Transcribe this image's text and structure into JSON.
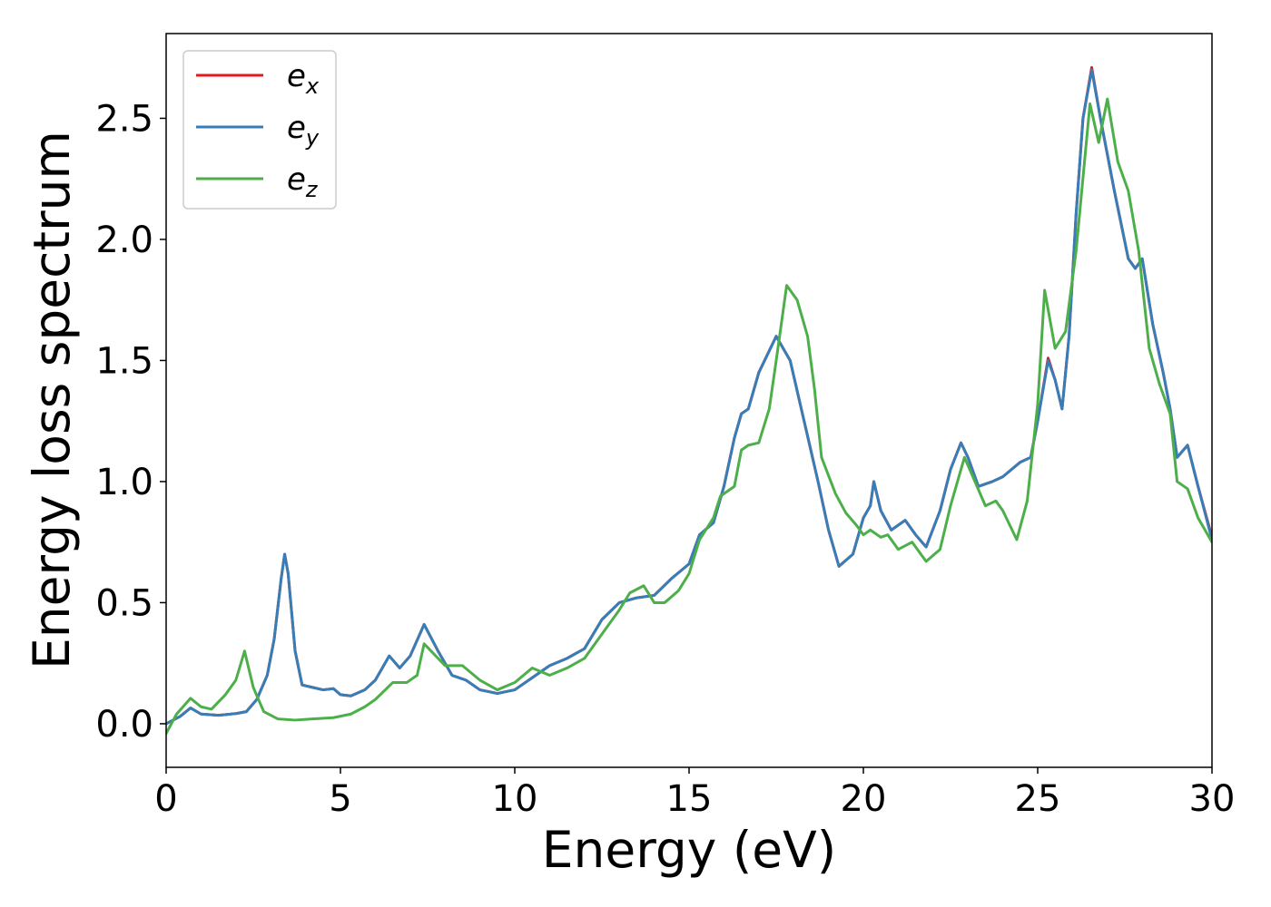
{
  "chart_data": {
    "type": "line",
    "title": "",
    "xlabel": "Energy (eV)",
    "ylabel": "Energy loss spectrum",
    "xlim": [
      0,
      30
    ],
    "ylim": [
      -0.18,
      2.85
    ],
    "xticks": [
      0,
      5,
      10,
      15,
      20,
      25,
      30
    ],
    "xtick_labels": [
      "0",
      "5",
      "10",
      "15",
      "20",
      "25",
      "30"
    ],
    "yticks": [
      0.0,
      0.5,
      1.0,
      1.5,
      2.0,
      2.5
    ],
    "ytick_labels": [
      "0.0",
      "0.5",
      "1.0",
      "1.5",
      "2.0",
      "2.5"
    ],
    "grid": false,
    "legend_position": "top-left",
    "series": [
      {
        "name": "e_x",
        "label_base": "e",
        "label_sub": "x",
        "color": "#e41a1c",
        "points": [
          [
            0,
            0.0
          ],
          [
            0.4,
            0.03
          ],
          [
            0.7,
            0.065
          ],
          [
            1.0,
            0.04
          ],
          [
            1.5,
            0.035
          ],
          [
            2.0,
            0.042
          ],
          [
            2.3,
            0.05
          ],
          [
            2.6,
            0.1
          ],
          [
            2.9,
            0.2
          ],
          [
            3.1,
            0.35
          ],
          [
            3.3,
            0.6
          ],
          [
            3.4,
            0.7
          ],
          [
            3.5,
            0.62
          ],
          [
            3.7,
            0.3
          ],
          [
            3.9,
            0.16
          ],
          [
            4.2,
            0.15
          ],
          [
            4.5,
            0.14
          ],
          [
            4.8,
            0.145
          ],
          [
            5.0,
            0.12
          ],
          [
            5.3,
            0.115
          ],
          [
            5.7,
            0.14
          ],
          [
            6.0,
            0.18
          ],
          [
            6.4,
            0.28
          ],
          [
            6.7,
            0.23
          ],
          [
            7.0,
            0.28
          ],
          [
            7.4,
            0.41
          ],
          [
            7.8,
            0.3
          ],
          [
            8.2,
            0.2
          ],
          [
            8.6,
            0.18
          ],
          [
            9.0,
            0.14
          ],
          [
            9.5,
            0.125
          ],
          [
            10.0,
            0.14
          ],
          [
            10.5,
            0.19
          ],
          [
            11.0,
            0.24
          ],
          [
            11.5,
            0.27
          ],
          [
            12.0,
            0.31
          ],
          [
            12.5,
            0.43
          ],
          [
            13.0,
            0.5
          ],
          [
            13.5,
            0.52
          ],
          [
            14.0,
            0.53
          ],
          [
            14.5,
            0.6
          ],
          [
            15.0,
            0.66
          ],
          [
            15.3,
            0.78
          ],
          [
            15.7,
            0.83
          ],
          [
            16.0,
            0.98
          ],
          [
            16.3,
            1.18
          ],
          [
            16.5,
            1.28
          ],
          [
            16.7,
            1.3
          ],
          [
            17.0,
            1.45
          ],
          [
            17.5,
            1.6
          ],
          [
            17.9,
            1.5
          ],
          [
            18.3,
            1.25
          ],
          [
            18.7,
            1.0
          ],
          [
            19.0,
            0.8
          ],
          [
            19.3,
            0.65
          ],
          [
            19.7,
            0.7
          ],
          [
            20.0,
            0.85
          ],
          [
            20.2,
            0.9
          ],
          [
            20.3,
            1.0
          ],
          [
            20.5,
            0.88
          ],
          [
            20.8,
            0.8
          ],
          [
            21.2,
            0.84
          ],
          [
            21.5,
            0.78
          ],
          [
            21.8,
            0.73
          ],
          [
            22.2,
            0.88
          ],
          [
            22.5,
            1.05
          ],
          [
            22.8,
            1.16
          ],
          [
            23.0,
            1.1
          ],
          [
            23.3,
            0.98
          ],
          [
            23.7,
            1.0
          ],
          [
            24.0,
            1.02
          ],
          [
            24.5,
            1.08
          ],
          [
            24.8,
            1.1
          ],
          [
            25.0,
            1.25
          ],
          [
            25.3,
            1.51
          ],
          [
            25.5,
            1.42
          ],
          [
            25.7,
            1.3
          ],
          [
            25.9,
            1.6
          ],
          [
            26.1,
            2.1
          ],
          [
            26.3,
            2.5
          ],
          [
            26.55,
            2.71
          ],
          [
            26.8,
            2.5
          ],
          [
            27.2,
            2.2
          ],
          [
            27.6,
            1.92
          ],
          [
            27.8,
            1.88
          ],
          [
            28.0,
            1.92
          ],
          [
            28.3,
            1.65
          ],
          [
            28.6,
            1.45
          ],
          [
            28.8,
            1.3
          ],
          [
            29.0,
            1.1
          ],
          [
            29.3,
            1.15
          ],
          [
            29.6,
            0.98
          ],
          [
            30.0,
            0.77
          ]
        ]
      },
      {
        "name": "e_y",
        "label_base": "e",
        "label_sub": "y",
        "color": "#377eb8",
        "points": [
          [
            0,
            0.0
          ],
          [
            0.4,
            0.03
          ],
          [
            0.7,
            0.065
          ],
          [
            1.0,
            0.04
          ],
          [
            1.5,
            0.035
          ],
          [
            2.0,
            0.042
          ],
          [
            2.3,
            0.05
          ],
          [
            2.6,
            0.1
          ],
          [
            2.9,
            0.2
          ],
          [
            3.1,
            0.35
          ],
          [
            3.3,
            0.6
          ],
          [
            3.4,
            0.7
          ],
          [
            3.5,
            0.62
          ],
          [
            3.7,
            0.3
          ],
          [
            3.9,
            0.16
          ],
          [
            4.2,
            0.15
          ],
          [
            4.5,
            0.14
          ],
          [
            4.8,
            0.145
          ],
          [
            5.0,
            0.12
          ],
          [
            5.3,
            0.115
          ],
          [
            5.7,
            0.14
          ],
          [
            6.0,
            0.18
          ],
          [
            6.4,
            0.28
          ],
          [
            6.7,
            0.23
          ],
          [
            7.0,
            0.28
          ],
          [
            7.4,
            0.41
          ],
          [
            7.8,
            0.3
          ],
          [
            8.2,
            0.2
          ],
          [
            8.6,
            0.18
          ],
          [
            9.0,
            0.14
          ],
          [
            9.5,
            0.125
          ],
          [
            10.0,
            0.14
          ],
          [
            10.5,
            0.19
          ],
          [
            11.0,
            0.24
          ],
          [
            11.5,
            0.27
          ],
          [
            12.0,
            0.31
          ],
          [
            12.5,
            0.43
          ],
          [
            13.0,
            0.5
          ],
          [
            13.5,
            0.52
          ],
          [
            14.0,
            0.53
          ],
          [
            14.5,
            0.6
          ],
          [
            15.0,
            0.66
          ],
          [
            15.3,
            0.78
          ],
          [
            15.7,
            0.83
          ],
          [
            16.0,
            0.98
          ],
          [
            16.3,
            1.18
          ],
          [
            16.5,
            1.28
          ],
          [
            16.7,
            1.3
          ],
          [
            17.0,
            1.45
          ],
          [
            17.5,
            1.6
          ],
          [
            17.9,
            1.5
          ],
          [
            18.3,
            1.25
          ],
          [
            18.7,
            1.0
          ],
          [
            19.0,
            0.8
          ],
          [
            19.3,
            0.65
          ],
          [
            19.7,
            0.7
          ],
          [
            20.0,
            0.85
          ],
          [
            20.2,
            0.9
          ],
          [
            20.3,
            1.0
          ],
          [
            20.5,
            0.88
          ],
          [
            20.8,
            0.8
          ],
          [
            21.2,
            0.84
          ],
          [
            21.5,
            0.78
          ],
          [
            21.8,
            0.73
          ],
          [
            22.2,
            0.88
          ],
          [
            22.5,
            1.05
          ],
          [
            22.8,
            1.16
          ],
          [
            23.0,
            1.1
          ],
          [
            23.3,
            0.98
          ],
          [
            23.7,
            1.0
          ],
          [
            24.0,
            1.02
          ],
          [
            24.5,
            1.08
          ],
          [
            24.8,
            1.1
          ],
          [
            25.0,
            1.25
          ],
          [
            25.3,
            1.5
          ],
          [
            25.5,
            1.42
          ],
          [
            25.7,
            1.3
          ],
          [
            25.9,
            1.6
          ],
          [
            26.1,
            2.1
          ],
          [
            26.3,
            2.5
          ],
          [
            26.55,
            2.7
          ],
          [
            26.8,
            2.5
          ],
          [
            27.2,
            2.2
          ],
          [
            27.6,
            1.92
          ],
          [
            27.8,
            1.88
          ],
          [
            28.0,
            1.92
          ],
          [
            28.3,
            1.65
          ],
          [
            28.6,
            1.45
          ],
          [
            28.8,
            1.3
          ],
          [
            29.0,
            1.1
          ],
          [
            29.3,
            1.15
          ],
          [
            29.6,
            0.98
          ],
          [
            30.0,
            0.76
          ]
        ]
      },
      {
        "name": "e_z",
        "label_base": "e",
        "label_sub": "z",
        "color": "#4daf4a",
        "points": [
          [
            0,
            -0.04
          ],
          [
            0.3,
            0.04
          ],
          [
            0.7,
            0.105
          ],
          [
            1.0,
            0.07
          ],
          [
            1.3,
            0.06
          ],
          [
            1.7,
            0.12
          ],
          [
            2.0,
            0.18
          ],
          [
            2.25,
            0.3
          ],
          [
            2.5,
            0.15
          ],
          [
            2.8,
            0.05
          ],
          [
            3.2,
            0.02
          ],
          [
            3.7,
            0.015
          ],
          [
            4.2,
            0.02
          ],
          [
            4.8,
            0.025
          ],
          [
            5.3,
            0.04
          ],
          [
            5.7,
            0.07
          ],
          [
            6.0,
            0.1
          ],
          [
            6.5,
            0.17
          ],
          [
            6.9,
            0.17
          ],
          [
            7.2,
            0.2
          ],
          [
            7.4,
            0.33
          ],
          [
            7.6,
            0.3
          ],
          [
            8.0,
            0.24
          ],
          [
            8.5,
            0.24
          ],
          [
            9.0,
            0.18
          ],
          [
            9.5,
            0.14
          ],
          [
            10.0,
            0.17
          ],
          [
            10.5,
            0.23
          ],
          [
            11.0,
            0.2
          ],
          [
            11.5,
            0.23
          ],
          [
            12.0,
            0.27
          ],
          [
            12.5,
            0.37
          ],
          [
            13.0,
            0.47
          ],
          [
            13.3,
            0.54
          ],
          [
            13.7,
            0.57
          ],
          [
            14.0,
            0.5
          ],
          [
            14.3,
            0.5
          ],
          [
            14.7,
            0.55
          ],
          [
            15.0,
            0.62
          ],
          [
            15.3,
            0.76
          ],
          [
            15.7,
            0.85
          ],
          [
            15.9,
            0.94
          ],
          [
            16.3,
            0.98
          ],
          [
            16.5,
            1.13
          ],
          [
            16.7,
            1.15
          ],
          [
            17.0,
            1.16
          ],
          [
            17.3,
            1.3
          ],
          [
            17.5,
            1.5
          ],
          [
            17.8,
            1.81
          ],
          [
            18.1,
            1.75
          ],
          [
            18.4,
            1.6
          ],
          [
            18.6,
            1.38
          ],
          [
            18.8,
            1.1
          ],
          [
            19.2,
            0.95
          ],
          [
            19.5,
            0.87
          ],
          [
            19.8,
            0.82
          ],
          [
            20.0,
            0.78
          ],
          [
            20.2,
            0.8
          ],
          [
            20.5,
            0.77
          ],
          [
            20.7,
            0.78
          ],
          [
            21.0,
            0.72
          ],
          [
            21.4,
            0.75
          ],
          [
            21.8,
            0.67
          ],
          [
            22.2,
            0.72
          ],
          [
            22.5,
            0.9
          ],
          [
            22.9,
            1.1
          ],
          [
            23.2,
            1.0
          ],
          [
            23.5,
            0.9
          ],
          [
            23.8,
            0.92
          ],
          [
            24.0,
            0.88
          ],
          [
            24.4,
            0.76
          ],
          [
            24.7,
            0.92
          ],
          [
            25.0,
            1.32
          ],
          [
            25.2,
            1.79
          ],
          [
            25.5,
            1.55
          ],
          [
            25.8,
            1.62
          ],
          [
            26.1,
            1.95
          ],
          [
            26.5,
            2.56
          ],
          [
            26.75,
            2.4
          ],
          [
            27.0,
            2.58
          ],
          [
            27.3,
            2.32
          ],
          [
            27.6,
            2.2
          ],
          [
            27.9,
            1.95
          ],
          [
            28.2,
            1.55
          ],
          [
            28.5,
            1.4
          ],
          [
            28.8,
            1.28
          ],
          [
            29.0,
            1.0
          ],
          [
            29.3,
            0.97
          ],
          [
            29.6,
            0.85
          ],
          [
            30.0,
            0.75
          ]
        ]
      }
    ]
  }
}
